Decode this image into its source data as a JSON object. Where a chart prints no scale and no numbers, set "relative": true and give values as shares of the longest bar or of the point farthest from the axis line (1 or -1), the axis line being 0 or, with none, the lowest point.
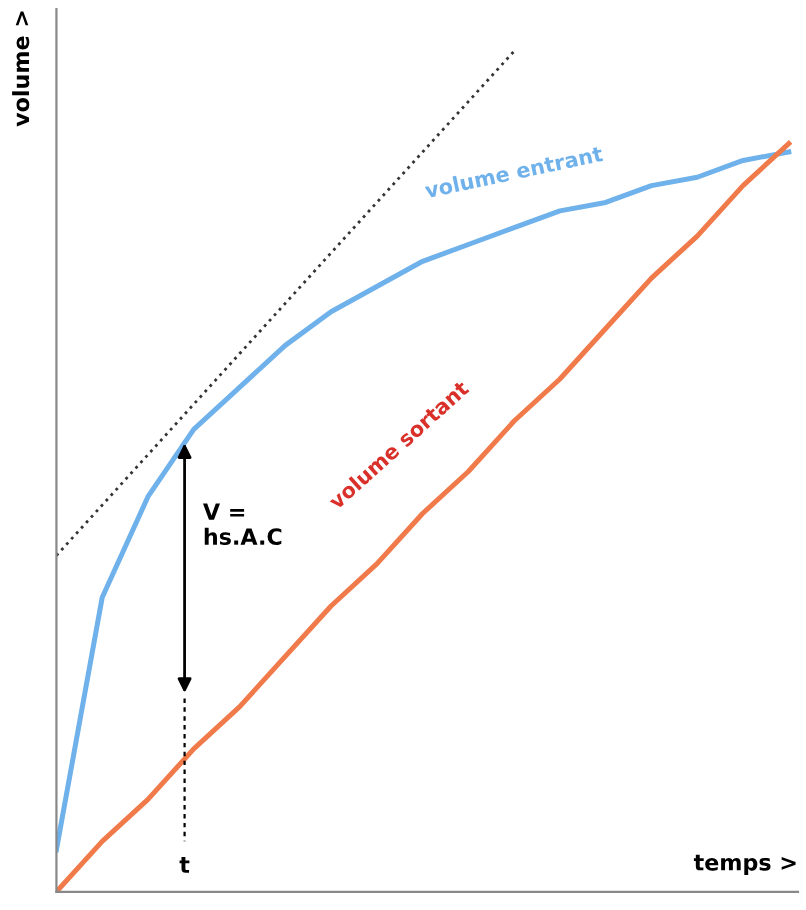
{
  "chart_data": {
    "type": "line",
    "relative": true,
    "xlabel": "temps >",
    "ylabel": "volume >",
    "categories": [
      null,
      null,
      null,
      null,
      null,
      null,
      null,
      null,
      null,
      null,
      null,
      null,
      null,
      null,
      null,
      null,
      null
    ],
    "series": [
      {
        "name": "volume entrant",
        "color": "#6fb1ea",
        "values": [
          0.05,
          0.35,
          0.47,
          0.55,
          0.6,
          0.65,
          0.69,
          0.72,
          0.75,
          0.77,
          0.79,
          0.81,
          0.82,
          0.84,
          0.85,
          0.87,
          0.88
        ]
      },
      {
        "name": "volume sortant",
        "color": "#f07a4a",
        "values": [
          0,
          0.06,
          0.11,
          0.17,
          0.22,
          0.28,
          0.34,
          0.39,
          0.45,
          0.5,
          0.56,
          0.61,
          0.67,
          0.73,
          0.78,
          0.84,
          0.89
        ]
      },
      {
        "color": "#333333",
        "line_style": "dotted",
        "values": [
          0.4,
          0.46,
          0.52,
          0.58,
          0.64,
          0.7,
          0.76,
          0.82,
          0.88,
          0.94,
          1.0,
          null,
          null,
          null,
          null,
          null,
          null
        ]
      }
    ],
    "annotations": [
      "V =\nhs.A.C",
      "t"
    ],
    "grid": false
  }
}
